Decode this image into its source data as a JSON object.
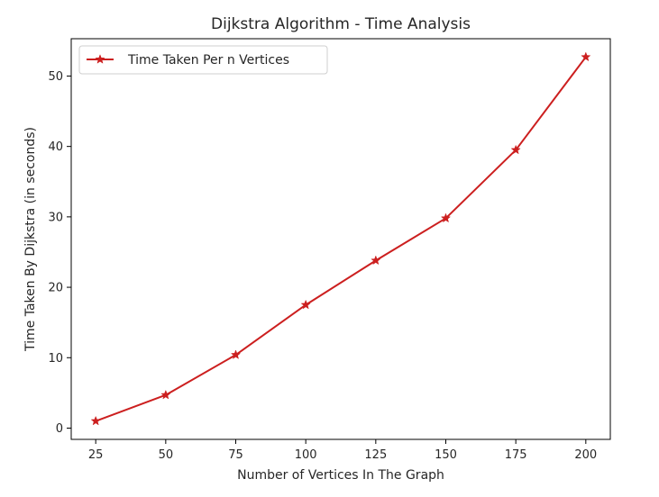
{
  "chart_data": {
    "type": "line",
    "title": "Dijkstra Algorithm - Time Analysis",
    "xlabel": "Number of Vertices In The Graph",
    "ylabel": "Time Taken By Dijkstra (in seconds)",
    "x": [
      25,
      50,
      75,
      100,
      125,
      150,
      175,
      200
    ],
    "series": [
      {
        "name": "Time Taken Per n Vertices",
        "values": [
          1.0,
          4.7,
          10.4,
          17.5,
          23.8,
          29.8,
          39.5,
          52.7
        ],
        "color": "#cc1f1f",
        "marker": "star"
      }
    ],
    "xlim": [
      16.25,
      208.75
    ],
    "ylim": [
      -1.6,
      55.3
    ],
    "xticks": [
      25,
      50,
      75,
      100,
      125,
      150,
      175,
      200
    ],
    "yticks": [
      0,
      10,
      20,
      30,
      40,
      50
    ],
    "grid": false,
    "legend_position": "upper-left"
  }
}
